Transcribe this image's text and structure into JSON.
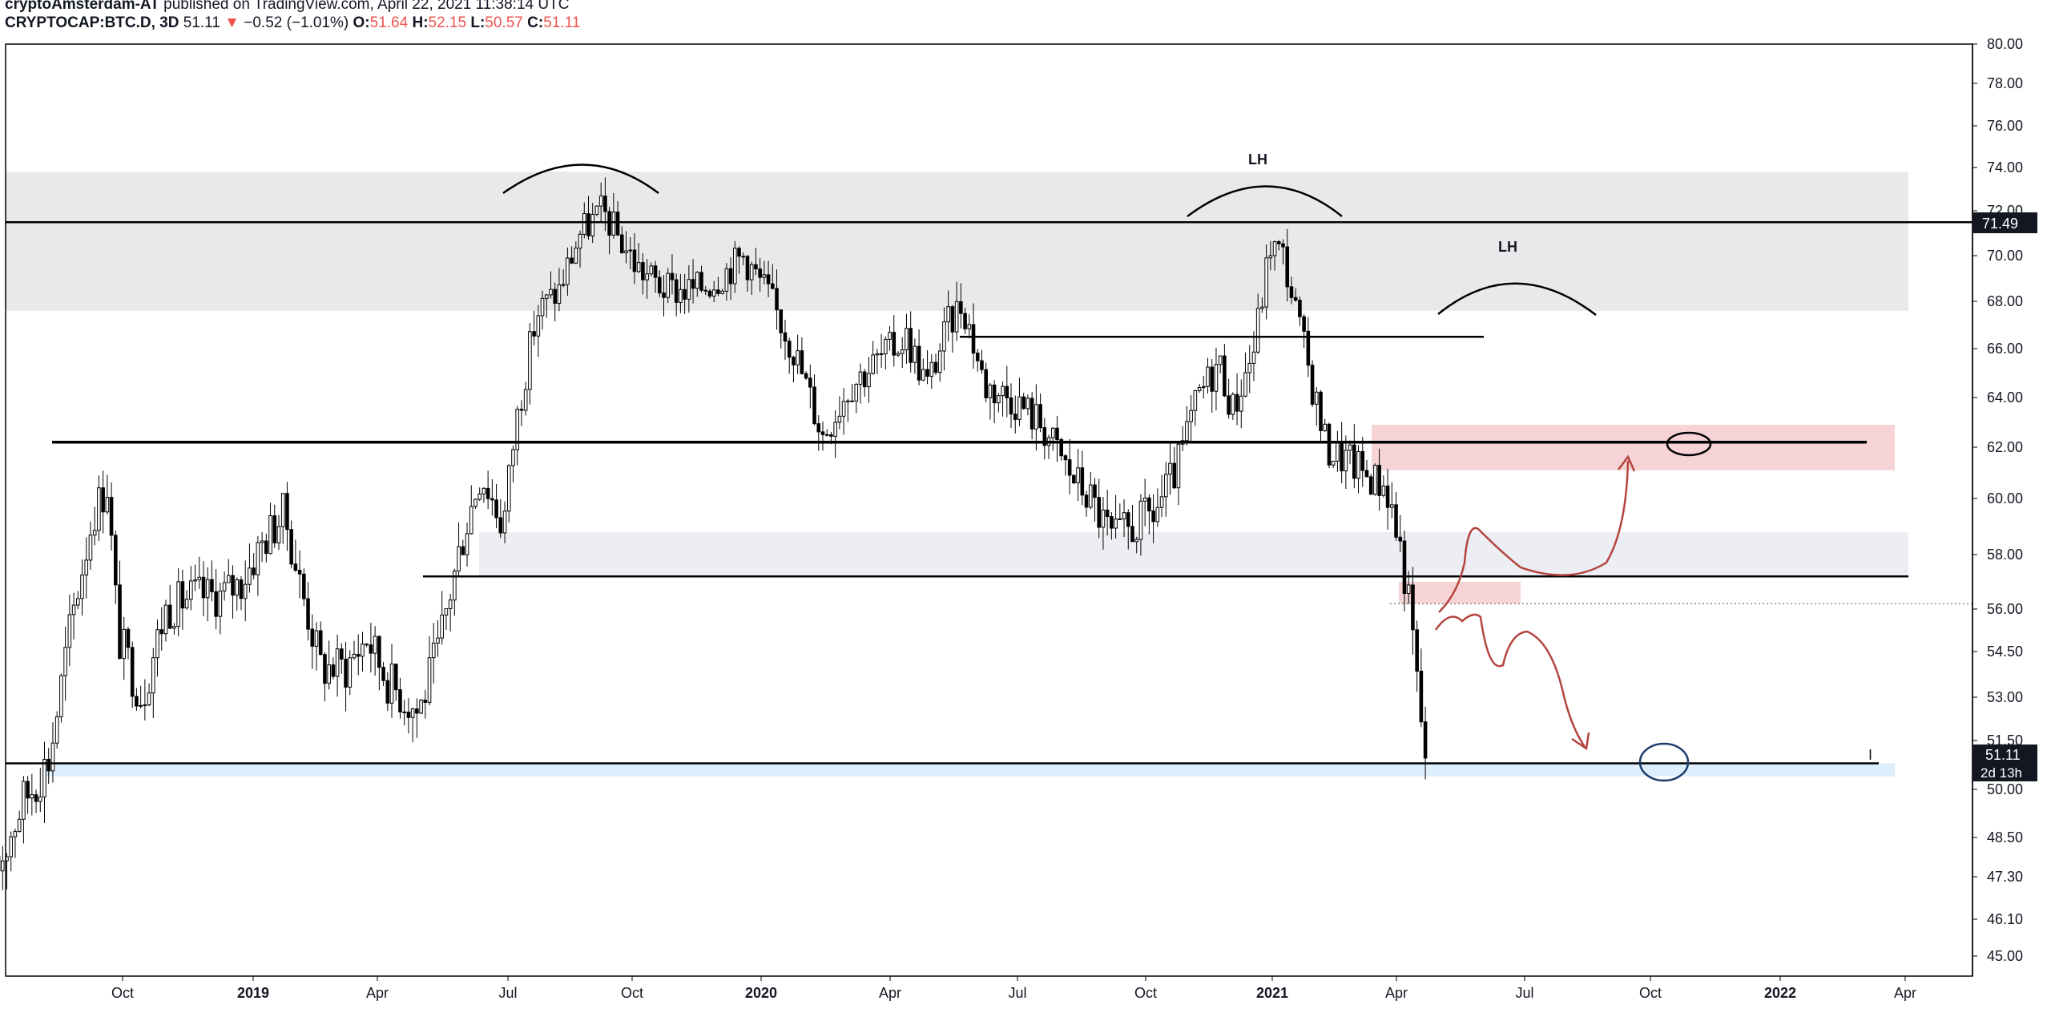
{
  "header": {
    "author": "cryptoAmsterdam-AT",
    "published_text": "published on TradingView.com, April 22, 2021 11:38:14 UTC",
    "symbol": "CRYPTOCAP:BTC.D, 3D",
    "last": "51.11",
    "change_arrow": "▼",
    "change": "−0.52 (−1.01%)",
    "o_label": "O:",
    "o_value": "51.64",
    "h_label": "H:",
    "h_value": "52.15",
    "l_label": "L:",
    "l_value": "50.57",
    "c_label": "C:",
    "c_value": "51.11"
  },
  "price_tags": {
    "resistance": "71.49",
    "last_price": "51.11",
    "countdown": "2d 13h"
  },
  "annotations": {
    "lh_1": "LH",
    "lh_2": "LH",
    "cursor": "I"
  },
  "colors": {
    "candle": "#000000",
    "grey_zone": "#e9e9ec",
    "light_zone": "#eceef3",
    "red_zone": "#f6d4d6",
    "blue_zone": "#ddeefc",
    "red_pen": "#b5443f",
    "blue_pen": "#1d3c6e"
  },
  "chart_data": {
    "type": "candlestick",
    "title": "CRYPTOCAP:BTC.D, 3D",
    "y_ticks": [
      "45.00",
      "46.10",
      "47.30",
      "48.50",
      "50.00",
      "51.50",
      "53.00",
      "54.50",
      "56.00",
      "58.00",
      "60.00",
      "62.00",
      "64.00",
      "66.00",
      "68.00",
      "70.00",
      "72.00",
      "74.00",
      "76.00",
      "78.00",
      "80.00"
    ],
    "x_ticks": [
      "Oct",
      "2019",
      "Apr",
      "Jul",
      "Oct",
      "2020",
      "Apr",
      "Jul",
      "Oct",
      "2021",
      "Apr",
      "Jul",
      "Oct",
      "2022",
      "Apr"
    ],
    "x_range": [
      "2018-07-01",
      "2022-06-15"
    ],
    "price_path": [
      [
        "2018-07-01",
        47.3
      ],
      [
        "2018-07-20",
        49.5
      ],
      [
        "2018-08-10",
        51.0
      ],
      [
        "2018-08-25",
        55.5
      ],
      [
        "2018-09-10",
        59.5
      ],
      [
        "2018-09-20",
        60.5
      ],
      [
        "2018-09-28",
        55.0
      ],
      [
        "2018-10-15",
        53.0
      ],
      [
        "2018-11-01",
        56.0
      ],
      [
        "2018-11-20",
        56.5
      ],
      [
        "2018-12-10",
        56.5
      ],
      [
        "2018-12-25",
        57.0
      ],
      [
        "2019-01-10",
        58.5
      ],
      [
        "2019-01-25",
        59.5
      ],
      [
        "2019-02-05",
        57.0
      ],
      [
        "2019-02-20",
        54.0
      ],
      [
        "2019-03-10",
        54.0
      ],
      [
        "2019-03-25",
        55.0
      ],
      [
        "2019-04-10",
        53.5
      ],
      [
        "2019-05-01",
        52.5
      ],
      [
        "2019-05-15",
        54.5
      ],
      [
        "2019-06-01",
        58.5
      ],
      [
        "2019-06-15",
        61.0
      ],
      [
        "2019-07-01",
        59.0
      ],
      [
        "2019-07-10",
        63.0
      ],
      [
        "2019-07-25",
        67.5
      ],
      [
        "2019-08-10",
        68.5
      ],
      [
        "2019-08-25",
        71.0
      ],
      [
        "2019-09-10",
        72.0
      ],
      [
        "2019-09-20",
        71.0
      ],
      [
        "2019-10-05",
        69.5
      ],
      [
        "2019-10-25",
        68.5
      ],
      [
        "2019-11-15",
        68.5
      ],
      [
        "2019-12-01",
        69.0
      ],
      [
        "2019-12-20",
        70.0
      ],
      [
        "2020-01-05",
        68.5
      ],
      [
        "2020-01-25",
        66.0
      ],
      [
        "2020-02-15",
        62.5
      ],
      [
        "2020-03-05",
        64.5
      ],
      [
        "2020-03-25",
        65.5
      ],
      [
        "2020-04-15",
        66.5
      ],
      [
        "2020-04-30",
        64.5
      ],
      [
        "2020-05-15",
        67.0
      ],
      [
        "2020-05-25",
        68.0
      ],
      [
        "2020-06-10",
        64.5
      ],
      [
        "2020-06-30",
        64.0
      ],
      [
        "2020-07-20",
        63.0
      ],
      [
        "2020-08-10",
        61.0
      ],
      [
        "2020-08-25",
        60.0
      ],
      [
        "2020-09-10",
        58.5
      ],
      [
        "2020-09-25",
        59.0
      ],
      [
        "2020-10-10",
        59.5
      ],
      [
        "2020-10-25",
        61.0
      ],
      [
        "2020-11-10",
        64.0
      ],
      [
        "2020-11-25",
        65.5
      ],
      [
        "2020-12-05",
        63.5
      ],
      [
        "2020-12-20",
        66.0
      ],
      [
        "2021-01-01",
        70.5
      ],
      [
        "2021-01-10",
        70.0
      ],
      [
        "2021-01-25",
        66.0
      ],
      [
        "2021-02-10",
        62.0
      ],
      [
        "2021-02-25",
        61.5
      ],
      [
        "2021-03-10",
        61.0
      ],
      [
        "2021-03-25",
        60.5
      ],
      [
        "2021-04-05",
        58.0
      ],
      [
        "2021-04-12",
        55.5
      ],
      [
        "2021-04-18",
        52.5
      ],
      [
        "2021-04-22",
        51.11
      ]
    ],
    "horizontal_lines": [
      71.49,
      66.5,
      62.2,
      57.2,
      56.2,
      50.8
    ],
    "zones": {
      "grey": [
        67.6,
        73.8
      ],
      "light": [
        57.2,
        58.8
      ],
      "red_upper": [
        61.1,
        62.9
      ],
      "red_lower": [
        56.2,
        57.0
      ],
      "blue": [
        50.4,
        50.8
      ]
    },
    "grid": false,
    "legend": "none"
  }
}
